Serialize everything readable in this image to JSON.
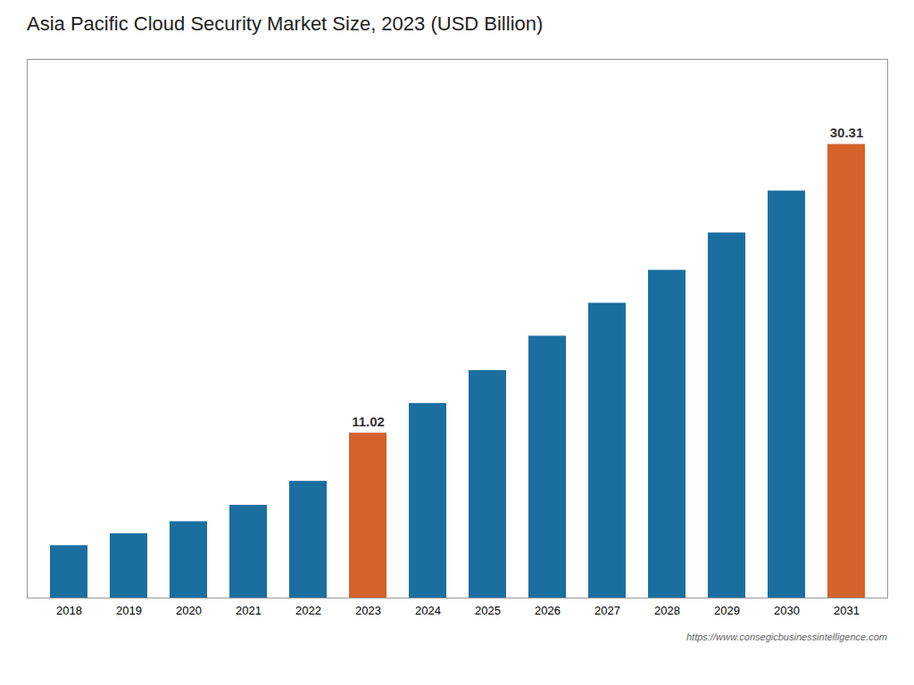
{
  "chart_data": {
    "type": "bar",
    "title": "Asia Pacific Cloud Security Market Size, 2023 (USD Billion)",
    "caption": "https://www.consegicbusinessintelligence.com",
    "categories": [
      "2018",
      "2019",
      "2020",
      "2021",
      "2022",
      "2023",
      "2024",
      "2025",
      "2026",
      "2027",
      "2028",
      "2029",
      "2030",
      "2031"
    ],
    "values": [
      3.5,
      4.3,
      5.1,
      6.2,
      7.8,
      11.02,
      13.0,
      15.2,
      17.5,
      19.7,
      21.9,
      24.4,
      27.2,
      30.31
    ],
    "colors": [
      "#1a6fa0",
      "#1a6fa0",
      "#1a6fa0",
      "#1a6fa0",
      "#1a6fa0",
      "#d4622a",
      "#1a6fa0",
      "#1a6fa0",
      "#1a6fa0",
      "#1a6fa0",
      "#1a6fa0",
      "#1a6fa0",
      "#1a6fa0",
      "#d4622a"
    ],
    "annotations": [
      {
        "x": "2023",
        "y": 11.02,
        "text": "11.02"
      },
      {
        "x": "2031",
        "y": 30.31,
        "text": "30.31"
      }
    ],
    "ylim": [
      0,
      36
    ],
    "tick_labels": "x",
    "grid": false
  }
}
